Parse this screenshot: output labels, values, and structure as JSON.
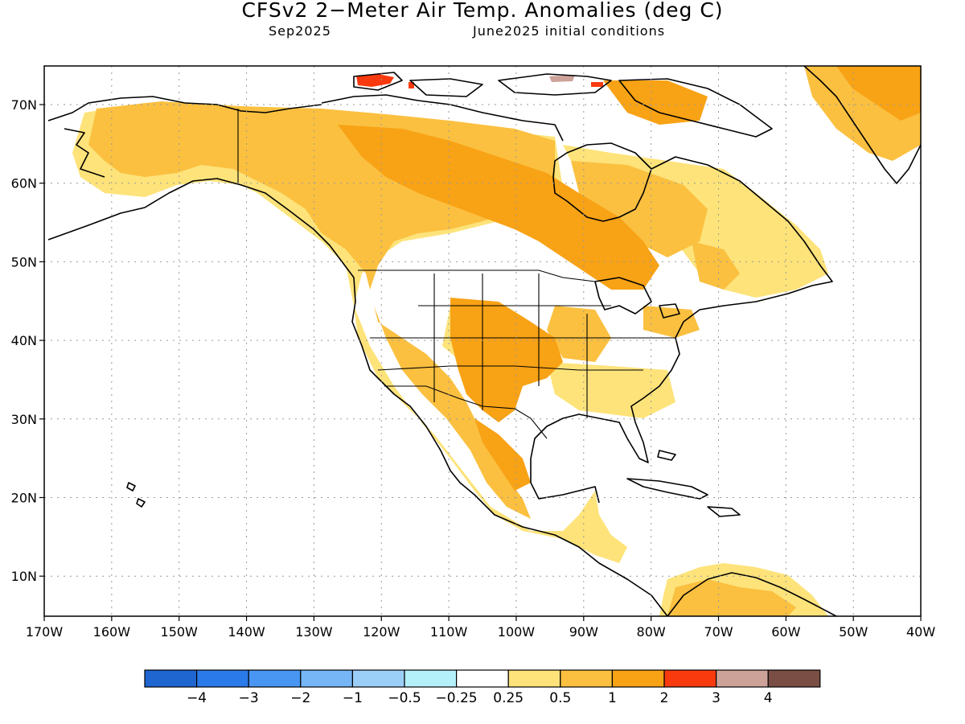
{
  "title": "CFSv2 2−Meter Air Temp. Anomalies (deg C)",
  "subtitle_left": "Sep2025",
  "subtitle_right": "June2025 initial conditions",
  "lat_labels": [
    "70N",
    "60N",
    "50N",
    "40N",
    "30N",
    "20N",
    "10N"
  ],
  "lon_labels": [
    "170W",
    "160W",
    "150W",
    "140W",
    "130W",
    "120W",
    "110W",
    "100W",
    "90W",
    "80W",
    "70W",
    "60W",
    "50W",
    "40W"
  ],
  "colorbar": {
    "colors": [
      "#1f66d0",
      "#2b7ae9",
      "#4896f2",
      "#76b6f6",
      "#9ccff8",
      "#b4f0fa",
      "#ffffff",
      "#fde37a",
      "#fbc040",
      "#f8a215",
      "#f83a0e",
      "#cca299",
      "#7a4e45"
    ],
    "labels": [
      "−4",
      "−3",
      "−2",
      "−1",
      "−0.5",
      "−0.25",
      "0.25",
      "0.5",
      "1",
      "2",
      "3",
      "4"
    ]
  },
  "legend_categories": {
    "light": "#fde37a",
    "medium": "#fbc040",
    "strong": "#f8a215",
    "extreme": "#f83a0e",
    "pink": "#cca299"
  }
}
